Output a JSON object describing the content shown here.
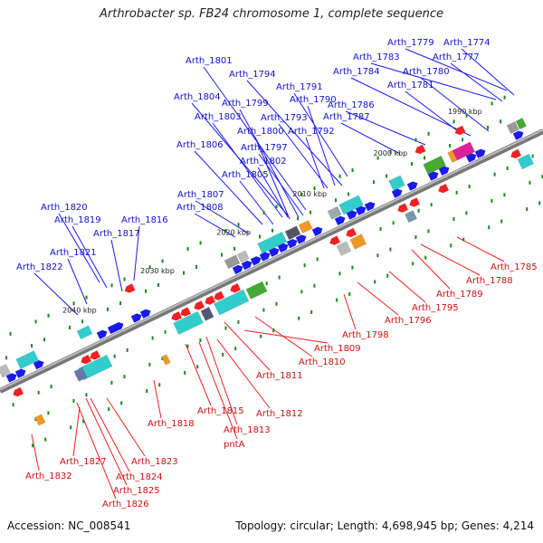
{
  "title": "Arthrobacter sp. FB24 chromosome 1, complete sequence",
  "footer": {
    "accession": "Accession: NC_008541",
    "summary": "Topology: circular; Length: 4,698,945 bp; Genes: 4,214"
  },
  "scale_labels": [
    "1990 kbp",
    "2000 kbp",
    "2010 kbp",
    "2020 kbp",
    "2030 kbp",
    "2040 kbp"
  ],
  "colors": {
    "forward_gene": "#1a1aee",
    "reverse_gene": "#ee2222",
    "backbone": "#888888",
    "cog_cyan": "#33cccc",
    "cog_green": "#44aa33",
    "cog_magenta": "#dd2299",
    "cog_orange": "#ee9922",
    "tick": "#1a8a1a"
  },
  "top_labels": [
    "Arth_1779",
    "Arth_1774",
    "Arth_1783",
    "Arth_1777",
    "Arth_1801",
    "Arth_1784",
    "Arth_1780",
    "Arth_1794",
    "Arth_1781",
    "Arth_1791",
    "Arth_1804",
    "Arth_1790",
    "Arth_1799",
    "Arth_1786",
    "Arth_1803",
    "Arth_1793",
    "Arth_1787",
    "Arth_1800",
    "Arth_1792",
    "Arth_1806",
    "Arth_1797",
    "Arth_1802",
    "Arth_1805",
    "Arth_1807",
    "Arth_1808",
    "Arth_1820",
    "Arth_1819",
    "Arth_1816",
    "Arth_1817",
    "Arth_1821",
    "Arth_1822"
  ],
  "bottom_labels": [
    "Arth_1785",
    "Arth_1788",
    "Arth_1789",
    "Arth_1795",
    "Arth_1796",
    "Arth_1798",
    "Arth_1809",
    "Arth_1810",
    "Arth_1811",
    "Arth_1812",
    "Arth_1815",
    "Arth_1813",
    "pntA",
    "Arth_1818",
    "Arth_1823",
    "Arth_1832",
    "Arth_1827",
    "Arth_1824",
    "Arth_1825",
    "Arth_1826"
  ]
}
